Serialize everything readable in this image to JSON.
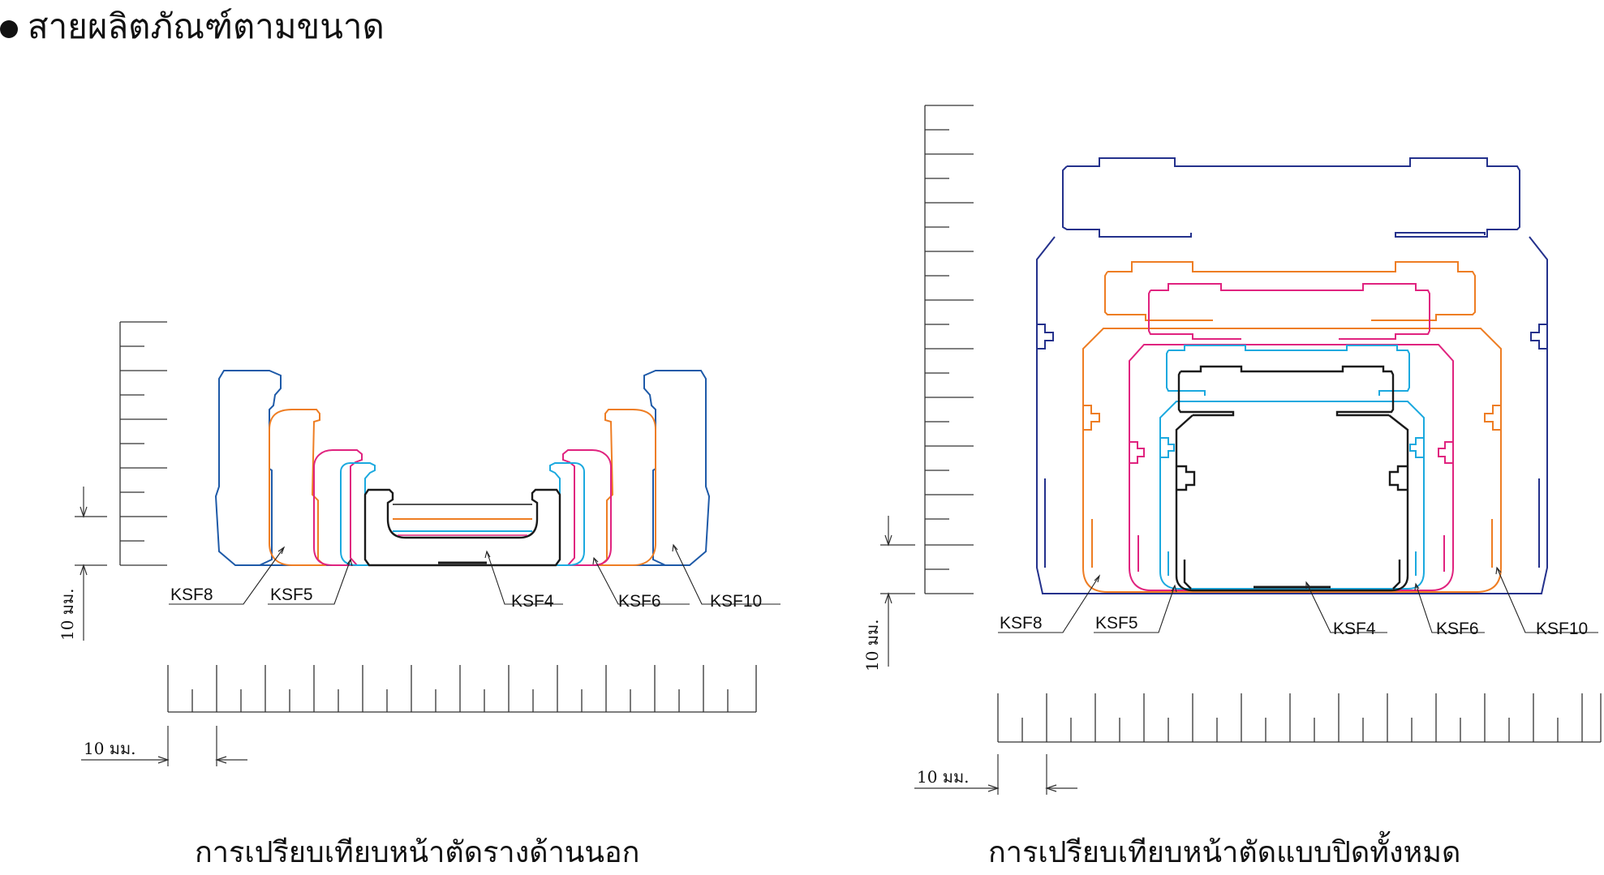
{
  "title": "สายผลิตภัณฑ์ตามขนาด",
  "colors": {
    "ksf4": "#1a1a1a",
    "ksf5": "#1ba9df",
    "ksf6": "#e0237f",
    "ksf8": "#ee7d23",
    "ksf10": "#1e5aa8",
    "ksf10_closed": "#24318c",
    "rail": "#1e5aa8",
    "scale": "#333333"
  },
  "left_panel": {
    "caption": "การเปรียบเทียบหน้าตัดรางด้านนอก",
    "labels": [
      "KSF8",
      "KSF5",
      "KSF4",
      "KSF6",
      "KSF10"
    ],
    "scale_x_label": "10 มม.",
    "scale_y_label": "10 มม."
  },
  "right_panel": {
    "caption": "การเปรียบเทียบหน้าตัดแบบปิดทั้งหมด",
    "labels": [
      "KSF8",
      "KSF5",
      "KSF4",
      "KSF6",
      "KSF10"
    ],
    "scale_x_label": "10 มม.",
    "scale_y_label": "10 มม."
  }
}
